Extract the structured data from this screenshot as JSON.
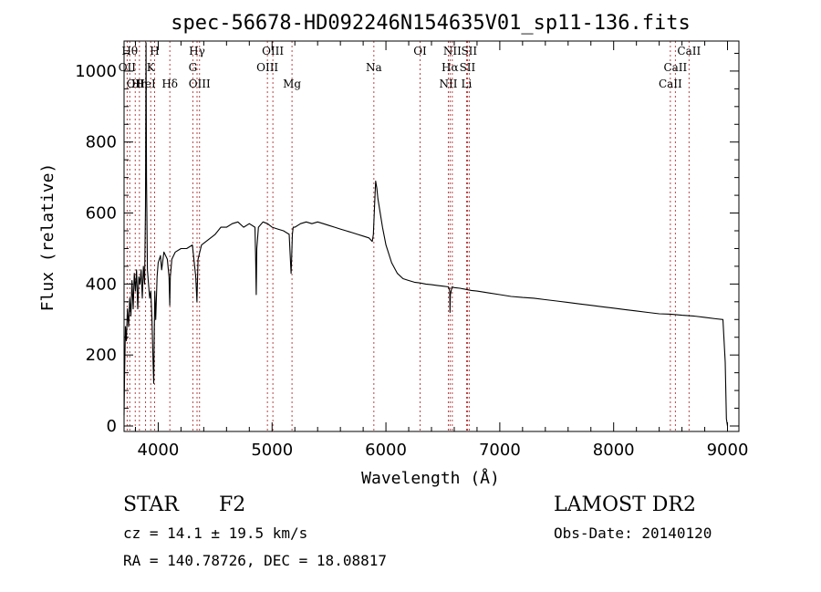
{
  "chart_data": {
    "type": "line",
    "title": "spec-56678-HD092246N154635V01_sp11-136.fits",
    "xlabel": "Wavelength (Å)",
    "ylabel": "Flux (relative)",
    "xlim": [
      3700,
      9100
    ],
    "ylim": [
      0,
      1100
    ],
    "xticks": [
      4000,
      5000,
      6000,
      7000,
      8000,
      9000
    ],
    "yticks": [
      0,
      200,
      400,
      600,
      800,
      1000
    ],
    "grid": false,
    "series": [
      {
        "x": [
          3700,
          3705,
          3712,
          3720,
          3730,
          3740,
          3750,
          3760,
          3770,
          3780,
          3790,
          3800,
          3810,
          3820,
          3830,
          3840,
          3850,
          3860,
          3870,
          3880,
          3888,
          3893,
          3897,
          3905,
          3915,
          3925,
          3935,
          3945,
          3955,
          3960,
          3965,
          3970,
          3978,
          3990,
          4000,
          4010,
          4020,
          4030,
          4050,
          4080,
          4095,
          4101,
          4106,
          4120,
          4150,
          4200,
          4250,
          4300,
          4330,
          4340,
          4350,
          4380,
          4420,
          4460,
          4500,
          4550,
          4600,
          4650,
          4700,
          4750,
          4800,
          4850,
          4855,
          4861,
          4866,
          4880,
          4920,
          4960,
          5000,
          5050,
          5100,
          5150,
          5167,
          5172,
          5178,
          5185,
          5200,
          5250,
          5300,
          5350,
          5400,
          5450,
          5500,
          5550,
          5600,
          5650,
          5700,
          5750,
          5800,
          5850,
          5880,
          5890,
          5900,
          5910,
          5920,
          5930,
          5950,
          5970,
          6000,
          6050,
          6100,
          6150,
          6200,
          6250,
          6300,
          6350,
          6400,
          6450,
          6500,
          6550,
          6560,
          6563,
          6566,
          6580,
          6600,
          6650,
          6700,
          6750,
          6800,
          6900,
          7000,
          7100,
          7200,
          7300,
          7400,
          7500,
          7600,
          7700,
          7800,
          7900,
          8000,
          8100,
          8200,
          8300,
          8400,
          8500,
          8600,
          8700,
          8800,
          8900,
          8960,
          8980,
          8990,
          9000
        ],
        "values": [
          30,
          150,
          280,
          240,
          330,
          280,
          360,
          310,
          410,
          330,
          430,
          380,
          440,
          330,
          420,
          400,
          440,
          360,
          450,
          400,
          620,
          1080,
          700,
          440,
          400,
          360,
          380,
          300,
          180,
          120,
          250,
          380,
          300,
          420,
          460,
          470,
          480,
          440,
          490,
          470,
          420,
          340,
          420,
          470,
          490,
          500,
          500,
          510,
          420,
          350,
          470,
          510,
          520,
          530,
          540,
          560,
          560,
          570,
          575,
          560,
          570,
          560,
          480,
          370,
          500,
          560,
          575,
          570,
          560,
          555,
          550,
          540,
          430,
          470,
          540,
          560,
          560,
          570,
          575,
          570,
          575,
          570,
          565,
          560,
          555,
          550,
          545,
          540,
          535,
          530,
          520,
          540,
          620,
          690,
          670,
          640,
          600,
          560,
          510,
          460,
          430,
          415,
          410,
          405,
          403,
          400,
          398,
          396,
          394,
          392,
          380,
          320,
          370,
          392,
          390,
          388,
          385,
          382,
          380,
          375,
          370,
          365,
          362,
          360,
          356,
          352,
          348,
          344,
          340,
          336,
          332,
          328,
          324,
          320,
          316,
          315,
          312,
          310,
          306,
          302,
          300,
          180,
          20,
          0
        ]
      }
    ],
    "line_marks": [
      {
        "x": 3727,
        "label": "OII",
        "row": 1
      },
      {
        "x": 3750,
        "label": "Hθ",
        "row": 0
      },
      {
        "x": 3798,
        "label": "OII",
        "row": 2
      },
      {
        "x": 3835,
        "label": "Hη",
        "row": 2
      },
      {
        "x": 3889,
        "label": "HeI",
        "row": 2
      },
      {
        "x": 3934,
        "label": "K",
        "row": 1
      },
      {
        "x": 3968,
        "label": "H",
        "row": 0
      },
      {
        "x": 4102,
        "label": "Hδ",
        "row": 2
      },
      {
        "x": 4304,
        "label": "G",
        "row": 1
      },
      {
        "x": 4341,
        "label": "Hγ",
        "row": 0
      },
      {
        "x": 4363,
        "label": "OIII",
        "row": 2
      },
      {
        "x": 4959,
        "label": "OIII",
        "row": 1
      },
      {
        "x": 5007,
        "label": "OIII",
        "row": 0
      },
      {
        "x": 5175,
        "label": "Mg",
        "row": 2
      },
      {
        "x": 5894,
        "label": "Na",
        "row": 1
      },
      {
        "x": 6300,
        "label": "OI",
        "row": 0
      },
      {
        "x": 6548,
        "label": "NII",
        "row": 2
      },
      {
        "x": 6563,
        "label": "Hα",
        "row": 1
      },
      {
        "x": 6583,
        "label": "NII",
        "row": 0
      },
      {
        "x": 6708,
        "label": "Li",
        "row": 2
      },
      {
        "x": 6716,
        "label": "SII",
        "row": 1
      },
      {
        "x": 6731,
        "label": "SII",
        "row": 0
      },
      {
        "x": 8498,
        "label": "CaII",
        "row": 2
      },
      {
        "x": 8542,
        "label": "CaII",
        "row": 1
      },
      {
        "x": 8662,
        "label": "CaII",
        "row": 0
      }
    ]
  },
  "info": {
    "object_class": "STAR",
    "subclass": "F2",
    "survey": "LAMOST DR2",
    "cz": "cz = 14.1 ± 19.5 km/s",
    "obs_date": "Obs-Date: 20140120",
    "coords": "RA = 140.78726, DEC =  18.08817"
  }
}
